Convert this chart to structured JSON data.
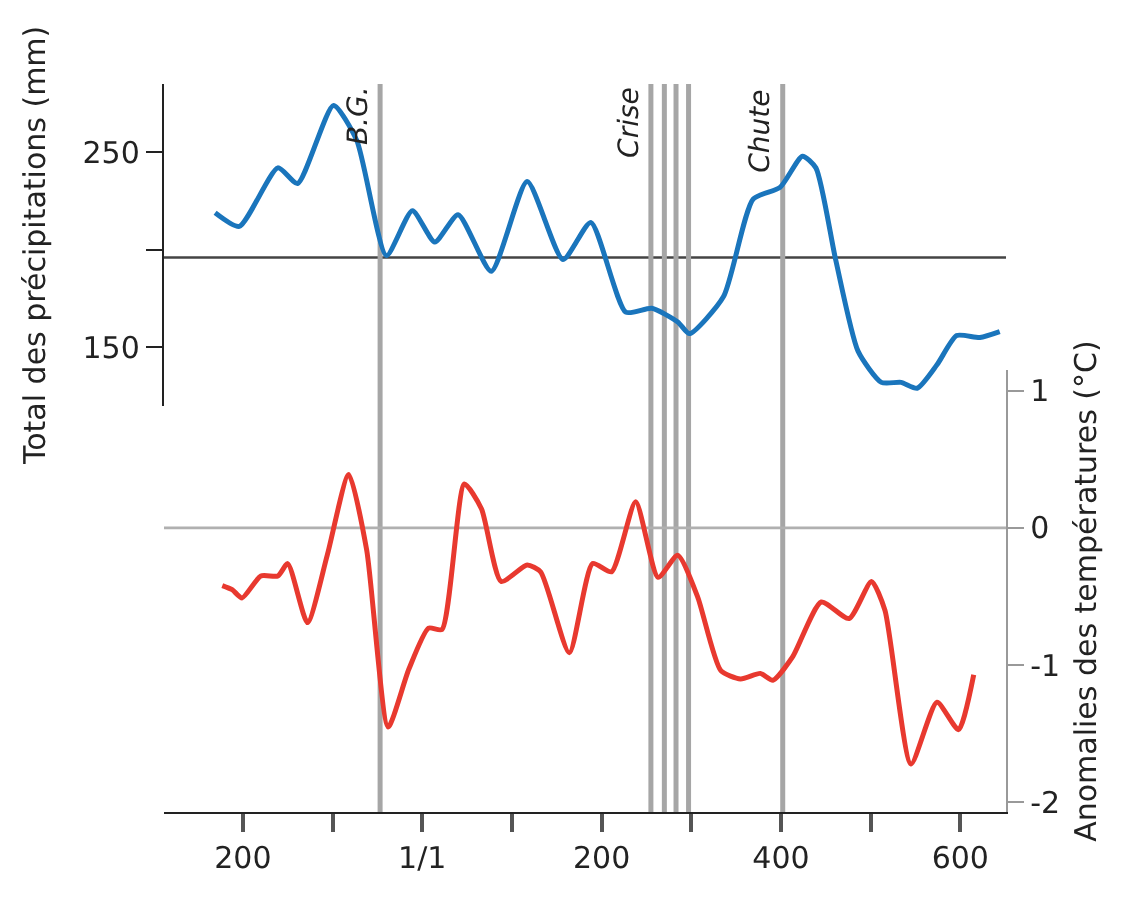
{
  "chart_data": [
    {
      "type": "line",
      "ylabel": "Total des précipitations (mm)",
      "xlim": [
        -288,
        651
      ],
      "ylim": [
        120,
        285
      ],
      "yticks": [
        250,
        {
          "value": 200,
          "label": null
        },
        150
      ],
      "tick_labels": "y",
      "grid": false,
      "series": [
        {
          "color": "#1a75bc",
          "x": [
            -231,
            -204,
            -161,
            -139,
            -99,
            -73,
            -40,
            -11,
            14,
            40,
            77,
            117,
            157,
            188,
            227,
            256,
            285,
            298,
            336,
            369,
            399,
            424,
            439,
            461,
            486,
            512,
            534,
            552,
            574,
            596,
            622,
            644
          ],
          "values": [
            219,
            212,
            242,
            234,
            274,
            256,
            197,
            220,
            204,
            218,
            189,
            235,
            195,
            214,
            168,
            170,
            163,
            157,
            176,
            226,
            232,
            248,
            242,
            195,
            148,
            132,
            132,
            129,
            141,
            156,
            155,
            158
          ]
        }
      ],
      "ref_lines": [
        {
          "axis": "y",
          "value": 196,
          "color": "#444444"
        },
        {
          "axis": "x",
          "value": -47,
          "label": "B.G.",
          "color": "#a6a6a6"
        },
        {
          "axis": "x",
          "value": 255,
          "label": "Crise",
          "color": "#a6a6a6"
        },
        {
          "axis": "x",
          "value": 270,
          "color": "#a6a6a6"
        },
        {
          "axis": "x",
          "value": 283,
          "color": "#a6a6a6"
        },
        {
          "axis": "x",
          "value": 297,
          "color": "#a6a6a6"
        },
        {
          "axis": "x",
          "value": 402,
          "label": "Chute",
          "color": "#a6a6a6"
        }
      ]
    },
    {
      "type": "line",
      "y2label": "Anomalies des températures (°C)",
      "xlim": [
        -288,
        651
      ],
      "xticks": [
        {
          "value": -200,
          "label": "200"
        },
        {
          "value": -100,
          "label": null
        },
        {
          "value": 0,
          "label": "1/1"
        },
        {
          "value": 100,
          "label": null
        },
        200,
        {
          "value": 300,
          "label": null
        },
        400,
        {
          "value": 500,
          "label": null
        },
        600
      ],
      "y2lim": [
        -2.07,
        1.15
      ],
      "y2ticks": [
        1,
        0,
        -1,
        -2
      ],
      "grid": false,
      "series": [
        {
          "color": "#e8392f",
          "axis": "y2",
          "x": [
            -223,
            -212,
            -201,
            -180,
            -161,
            -150,
            -128,
            -106,
            -82,
            -62,
            -38,
            -15,
            7,
            22,
            47,
            66,
            88,
            117,
            132,
            164,
            190,
            211,
            238,
            263,
            285,
            307,
            333,
            355,
            377,
            391,
            413,
            445,
            476,
            501,
            516,
            545,
            574,
            598,
            615
          ],
          "values": [
            -0.42,
            -0.45,
            -0.51,
            -0.35,
            -0.35,
            -0.26,
            -0.69,
            -0.2,
            0.39,
            -0.16,
            -1.45,
            -1.03,
            -0.73,
            -0.74,
            0.32,
            0.14,
            -0.39,
            -0.27,
            -0.32,
            -0.91,
            -0.26,
            -0.32,
            0.19,
            -0.36,
            -0.2,
            -0.5,
            -1.04,
            -1.1,
            -1.06,
            -1.11,
            -0.94,
            -0.54,
            -0.66,
            -0.39,
            -0.6,
            -1.72,
            -1.27,
            -1.47,
            -1.07
          ]
        }
      ],
      "ref_lines": [
        {
          "axis": "y2",
          "value": 0,
          "color": "#b0b0b0"
        }
      ]
    }
  ]
}
